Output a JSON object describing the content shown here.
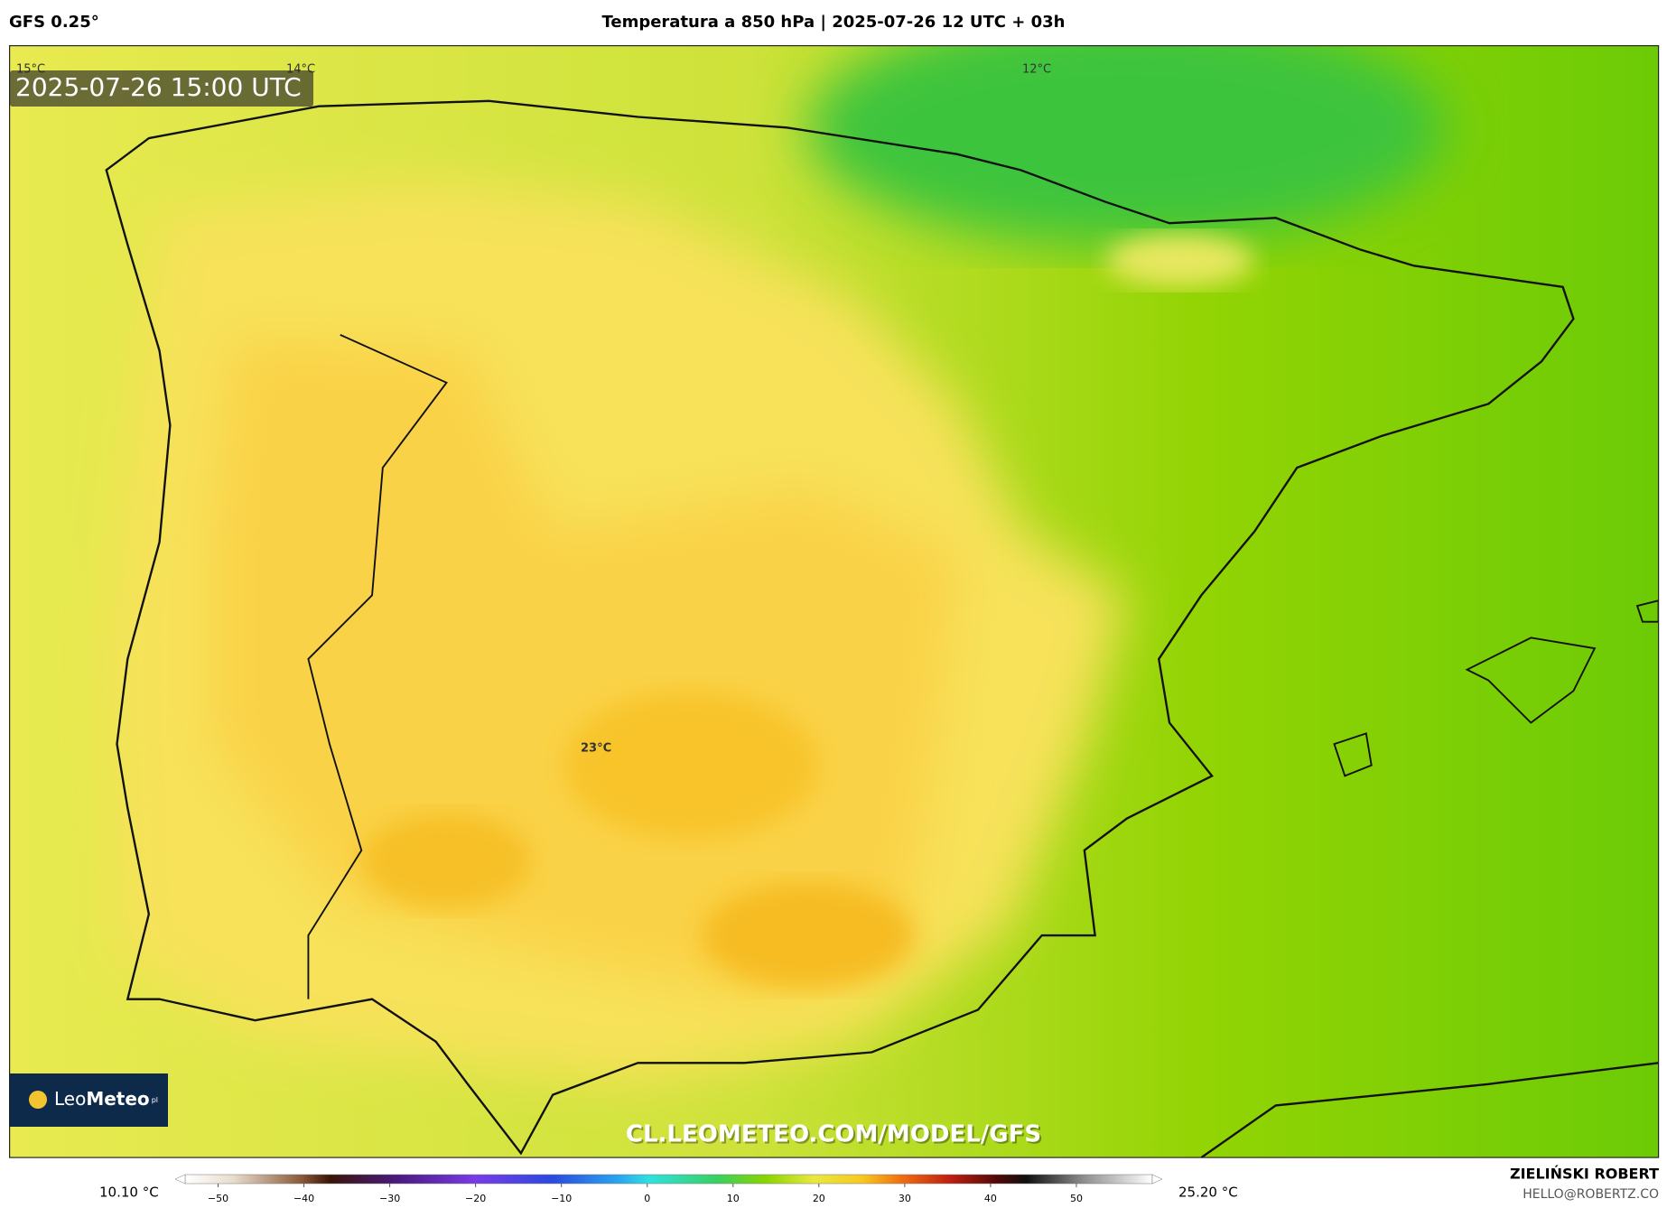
{
  "header": {
    "model": "GFS 0.25°",
    "title": "Temperatura a 850 hPa | 2025-07-26 12 UTC + 03h"
  },
  "map": {
    "valid_time": "2025-07-26 15:00 UTC",
    "isotherm_labels": [
      "15°C",
      "14°C",
      "12°C",
      "23°C"
    ],
    "logo": {
      "leo": "Leo",
      "meteo": "Meteo",
      "suffix": "pl"
    },
    "watermark": "CL.LEOMETEO.COM/MODEL/GFS"
  },
  "colorbar": {
    "min_label": "10.10 °C",
    "max_label": "25.20 °C",
    "lim": [
      -55,
      60
    ],
    "ticks": [
      {
        "value": -50,
        "label": "−50"
      },
      {
        "value": -40,
        "label": "−40"
      },
      {
        "value": -30,
        "label": "−30"
      },
      {
        "value": -20,
        "label": "−20"
      },
      {
        "value": -10,
        "label": "−10"
      },
      0,
      10,
      20,
      30,
      40,
      50
    ]
  },
  "credits": {
    "author": "ZIELIŃSKI ROBERT",
    "email": "HELLO@ROBERTZ.CO"
  }
}
